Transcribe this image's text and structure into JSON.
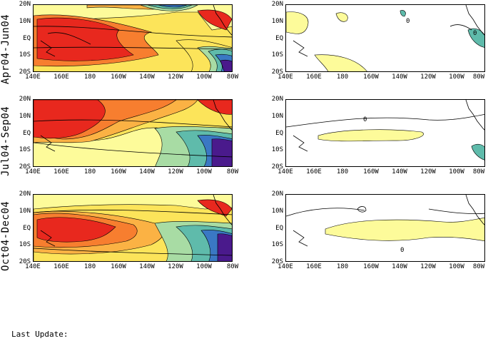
{
  "rows": [
    {
      "label": "Apr04-Jun04"
    },
    {
      "label": "Jul04-Sep04"
    },
    {
      "label": "Oct04-Dec04"
    }
  ],
  "y_ticks": [
    "20N",
    "10N",
    "EQ",
    "10S",
    "20S"
  ],
  "x_ticks": [
    "140E",
    "160E",
    "180",
    "160W",
    "140W",
    "120W",
    "100W",
    "80W"
  ],
  "contour_label": "0",
  "footer": {
    "last_update": "Last Update:"
  },
  "colors": {
    "dark_red": "#e8281e",
    "orange": "#f77e2f",
    "light_orange": "#fbb244",
    "yellow": "#fce45a",
    "pale_yellow": "#fdfb9a",
    "light_green": "#a8dca4",
    "teal": "#5fbbab",
    "blue": "#3a78c4",
    "purple": "#4a1a8c",
    "anomaly_positive": "#fdfb9a",
    "anomaly_negative": "#5fbbab"
  }
}
